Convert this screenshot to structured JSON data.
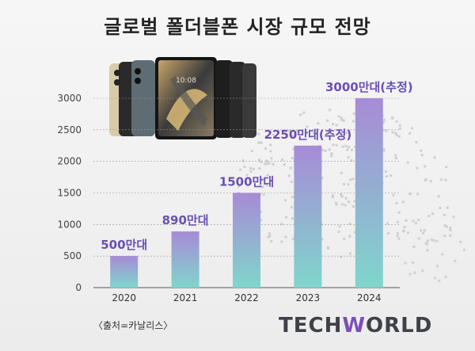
{
  "title": "글로벌 폴더블폰 시장 규모 전망",
  "source": "〈출처=카날리스〉",
  "logo": {
    "part1": "TECH",
    "part2": "W",
    "part3": "ORLD"
  },
  "chart_data": {
    "type": "bar",
    "categories": [
      "2020",
      "2021",
      "2022",
      "2023",
      "2024"
    ],
    "values": [
      500,
      890,
      1500,
      2250,
      3000
    ],
    "labels": [
      "500만대",
      "890만대",
      "1500만대",
      "2250만대(추정)",
      "3000만대(추정)"
    ],
    "yticks": [
      0,
      500,
      1000,
      1500,
      2000,
      2500,
      3000
    ],
    "ylim": [
      0,
      3000
    ],
    "colors": {
      "bar_top": "#a78bd6",
      "bar_bottom": "#7fd6cc",
      "label": "#6a4fb5"
    }
  }
}
